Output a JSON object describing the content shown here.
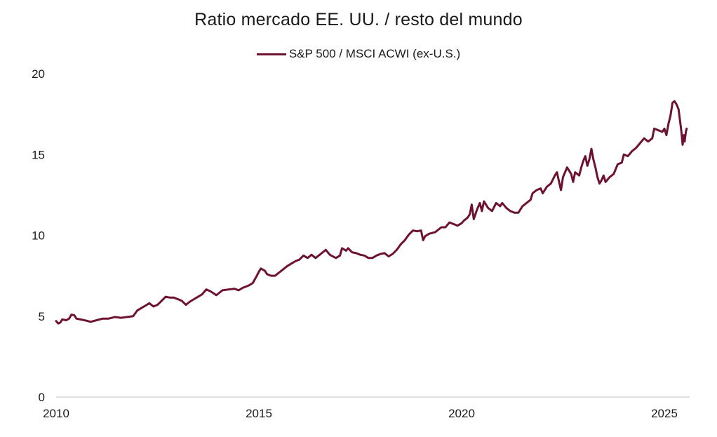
{
  "chart_data": {
    "type": "line",
    "title": "Ratio mercado EE. UU. / resto del mundo",
    "xlabel": "",
    "ylabel": "",
    "xlim": [
      2010.0,
      2025.55
    ],
    "ylim": [
      0,
      20
    ],
    "x_ticks": [
      "2010",
      "2015",
      "2020",
      "2025"
    ],
    "y_ticks": [
      "0",
      "5",
      "10",
      "15",
      "20"
    ],
    "grid": false,
    "legend_position": "top-center",
    "series": [
      {
        "name": "S&P 500 / MSCI ACWI (ex-U.S.)",
        "color": "#6d1232",
        "points": [
          [
            2010.0,
            4.7
          ],
          [
            2010.05,
            4.55
          ],
          [
            2010.1,
            4.6
          ],
          [
            2010.15,
            4.8
          ],
          [
            2010.25,
            4.75
          ],
          [
            2010.32,
            4.85
          ],
          [
            2010.38,
            5.1
          ],
          [
            2010.45,
            5.05
          ],
          [
            2010.5,
            4.85
          ],
          [
            2010.6,
            4.8
          ],
          [
            2010.75,
            4.72
          ],
          [
            2010.85,
            4.65
          ],
          [
            2011.0,
            4.75
          ],
          [
            2011.15,
            4.85
          ],
          [
            2011.3,
            4.85
          ],
          [
            2011.45,
            4.95
          ],
          [
            2011.6,
            4.9
          ],
          [
            2011.75,
            4.95
          ],
          [
            2011.9,
            5.0
          ],
          [
            2012.0,
            5.35
          ],
          [
            2012.1,
            5.5
          ],
          [
            2012.2,
            5.65
          ],
          [
            2012.3,
            5.8
          ],
          [
            2012.4,
            5.6
          ],
          [
            2012.5,
            5.7
          ],
          [
            2012.6,
            5.95
          ],
          [
            2012.7,
            6.2
          ],
          [
            2012.8,
            6.15
          ],
          [
            2012.9,
            6.15
          ],
          [
            2013.0,
            6.05
          ],
          [
            2013.1,
            5.95
          ],
          [
            2013.2,
            5.7
          ],
          [
            2013.3,
            5.9
          ],
          [
            2013.4,
            6.05
          ],
          [
            2013.5,
            6.2
          ],
          [
            2013.6,
            6.35
          ],
          [
            2013.7,
            6.65
          ],
          [
            2013.8,
            6.55
          ],
          [
            2013.95,
            6.3
          ],
          [
            2014.0,
            6.4
          ],
          [
            2014.1,
            6.6
          ],
          [
            2014.25,
            6.65
          ],
          [
            2014.4,
            6.7
          ],
          [
            2014.5,
            6.6
          ],
          [
            2014.6,
            6.75
          ],
          [
            2014.75,
            6.9
          ],
          [
            2014.85,
            7.05
          ],
          [
            2014.95,
            7.5
          ],
          [
            2015.0,
            7.75
          ],
          [
            2015.05,
            7.95
          ],
          [
            2015.15,
            7.8
          ],
          [
            2015.2,
            7.6
          ],
          [
            2015.3,
            7.5
          ],
          [
            2015.4,
            7.5
          ],
          [
            2015.5,
            7.7
          ],
          [
            2015.6,
            7.9
          ],
          [
            2015.7,
            8.1
          ],
          [
            2015.8,
            8.25
          ],
          [
            2015.9,
            8.4
          ],
          [
            2016.0,
            8.5
          ],
          [
            2016.1,
            8.75
          ],
          [
            2016.2,
            8.6
          ],
          [
            2016.3,
            8.8
          ],
          [
            2016.4,
            8.6
          ],
          [
            2016.5,
            8.8
          ],
          [
            2016.6,
            9.0
          ],
          [
            2016.65,
            9.1
          ],
          [
            2016.75,
            8.8
          ],
          [
            2016.9,
            8.6
          ],
          [
            2017.0,
            8.75
          ],
          [
            2017.05,
            9.2
          ],
          [
            2017.15,
            9.05
          ],
          [
            2017.2,
            9.2
          ],
          [
            2017.3,
            8.95
          ],
          [
            2017.4,
            8.9
          ],
          [
            2017.5,
            8.8
          ],
          [
            2017.6,
            8.75
          ],
          [
            2017.7,
            8.6
          ],
          [
            2017.8,
            8.6
          ],
          [
            2017.9,
            8.75
          ],
          [
            2018.0,
            8.85
          ],
          [
            2018.1,
            8.9
          ],
          [
            2018.2,
            8.7
          ],
          [
            2018.3,
            8.85
          ],
          [
            2018.4,
            9.1
          ],
          [
            2018.5,
            9.45
          ],
          [
            2018.6,
            9.7
          ],
          [
            2018.7,
            10.05
          ],
          [
            2018.8,
            10.3
          ],
          [
            2018.9,
            10.25
          ],
          [
            2019.0,
            10.3
          ],
          [
            2019.05,
            9.7
          ],
          [
            2019.1,
            9.95
          ],
          [
            2019.2,
            10.1
          ],
          [
            2019.35,
            10.2
          ],
          [
            2019.5,
            10.5
          ],
          [
            2019.6,
            10.5
          ],
          [
            2019.7,
            10.8
          ],
          [
            2019.8,
            10.7
          ],
          [
            2019.9,
            10.6
          ],
          [
            2020.0,
            10.75
          ],
          [
            2020.05,
            10.9
          ],
          [
            2020.15,
            11.1
          ],
          [
            2020.2,
            11.3
          ],
          [
            2020.25,
            11.9
          ],
          [
            2020.3,
            11.0
          ],
          [
            2020.38,
            11.6
          ],
          [
            2020.45,
            12.0
          ],
          [
            2020.5,
            11.5
          ],
          [
            2020.55,
            12.1
          ],
          [
            2020.65,
            11.7
          ],
          [
            2020.75,
            11.5
          ],
          [
            2020.85,
            12.0
          ],
          [
            2020.95,
            11.8
          ],
          [
            2021.0,
            12.0
          ],
          [
            2021.1,
            11.7
          ],
          [
            2021.2,
            11.5
          ],
          [
            2021.3,
            11.4
          ],
          [
            2021.4,
            11.4
          ],
          [
            2021.5,
            11.8
          ],
          [
            2021.6,
            12.0
          ],
          [
            2021.7,
            12.2
          ],
          [
            2021.75,
            12.6
          ],
          [
            2021.85,
            12.8
          ],
          [
            2021.95,
            12.9
          ],
          [
            2022.0,
            12.6
          ],
          [
            2022.1,
            13.0
          ],
          [
            2022.2,
            13.2
          ],
          [
            2022.3,
            13.7
          ],
          [
            2022.35,
            13.9
          ],
          [
            2022.45,
            12.8
          ],
          [
            2022.5,
            13.6
          ],
          [
            2022.6,
            14.2
          ],
          [
            2022.7,
            13.8
          ],
          [
            2022.75,
            13.3
          ],
          [
            2022.8,
            13.9
          ],
          [
            2022.9,
            13.7
          ],
          [
            2022.95,
            14.2
          ],
          [
            2023.0,
            14.6
          ],
          [
            2023.05,
            14.9
          ],
          [
            2023.1,
            14.3
          ],
          [
            2023.15,
            14.7
          ],
          [
            2023.2,
            15.35
          ],
          [
            2023.25,
            14.7
          ],
          [
            2023.3,
            14.2
          ],
          [
            2023.35,
            13.6
          ],
          [
            2023.4,
            13.2
          ],
          [
            2023.45,
            13.4
          ],
          [
            2023.5,
            13.7
          ],
          [
            2023.55,
            13.3
          ],
          [
            2023.65,
            13.6
          ],
          [
            2023.75,
            13.8
          ],
          [
            2023.85,
            14.4
          ],
          [
            2023.95,
            14.5
          ],
          [
            2024.0,
            15.0
          ],
          [
            2024.1,
            14.9
          ],
          [
            2024.2,
            15.2
          ],
          [
            2024.3,
            15.4
          ],
          [
            2024.4,
            15.7
          ],
          [
            2024.5,
            16.0
          ],
          [
            2024.6,
            15.8
          ],
          [
            2024.7,
            16.0
          ],
          [
            2024.75,
            16.6
          ],
          [
            2024.85,
            16.5
          ],
          [
            2024.95,
            16.4
          ],
          [
            2025.0,
            16.6
          ],
          [
            2025.05,
            16.2
          ],
          [
            2025.1,
            16.9
          ],
          [
            2025.15,
            17.4
          ],
          [
            2025.2,
            18.2
          ],
          [
            2025.25,
            18.3
          ],
          [
            2025.3,
            18.1
          ],
          [
            2025.35,
            17.8
          ],
          [
            2025.38,
            17.2
          ],
          [
            2025.42,
            16.4
          ],
          [
            2025.45,
            15.6
          ],
          [
            2025.48,
            16.2
          ],
          [
            2025.5,
            15.8
          ],
          [
            2025.53,
            16.4
          ],
          [
            2025.55,
            16.6
          ]
        ]
      }
    ]
  }
}
